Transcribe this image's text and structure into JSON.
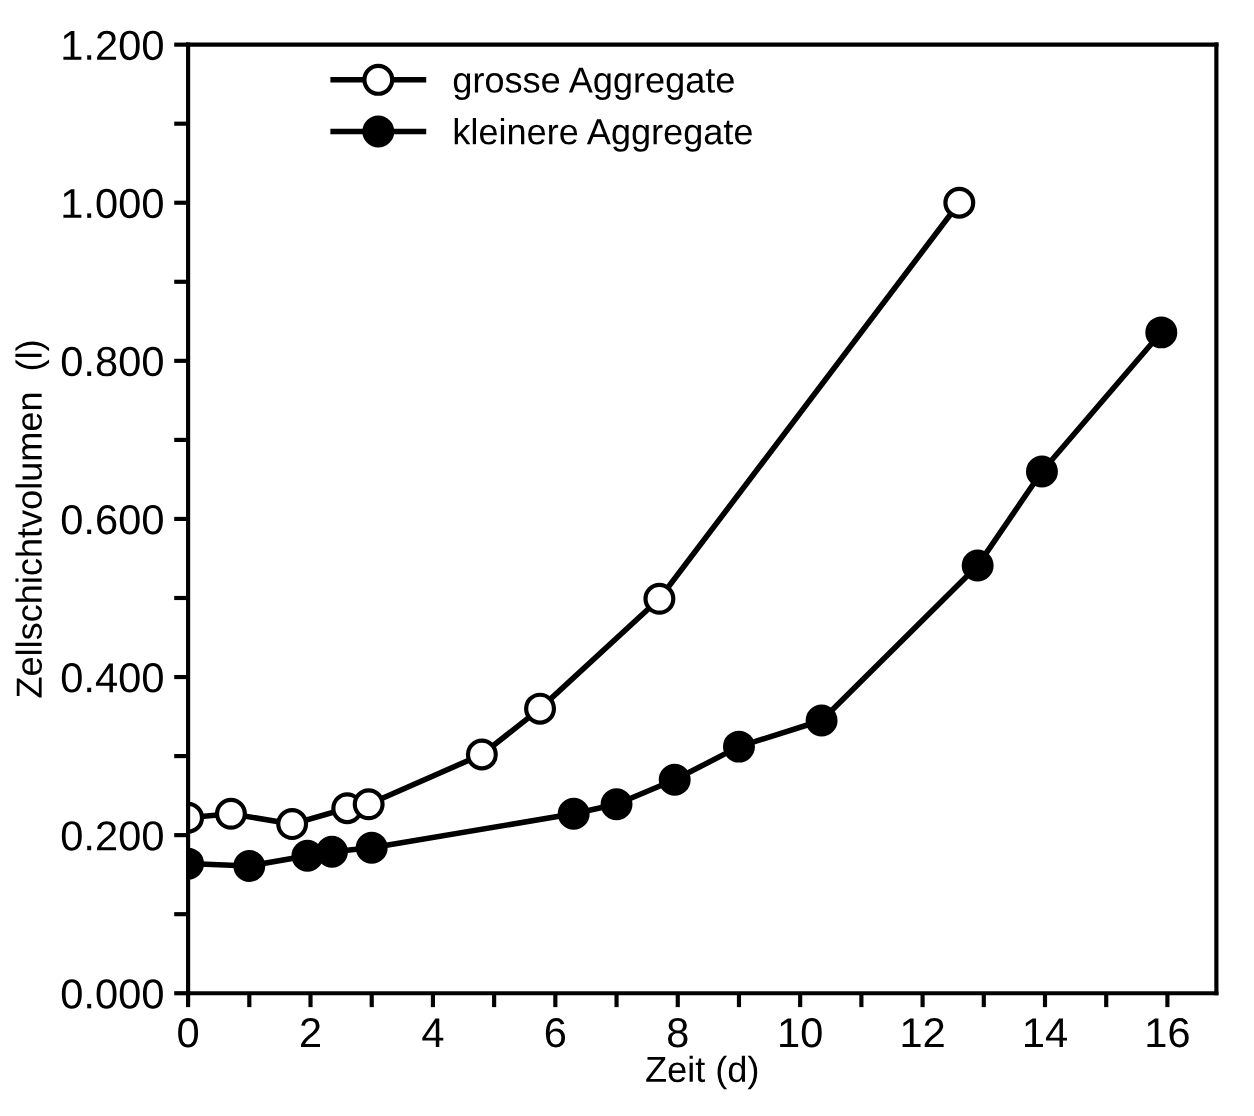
{
  "chart_data": {
    "type": "line",
    "xlabel": "Zeit (d)",
    "ylabel": "Zellschichtvolumen  (l)",
    "xlim": [
      0,
      16.8
    ],
    "ylim": [
      0,
      1.2
    ],
    "xticks": [
      0,
      {
        "value": 1,
        "label": null
      },
      2,
      {
        "value": 3,
        "label": null
      },
      4,
      {
        "value": 5,
        "label": null
      },
      6,
      {
        "value": 7,
        "label": null
      },
      8,
      {
        "value": 9,
        "label": null
      },
      10,
      {
        "value": 11,
        "label": null
      },
      12,
      {
        "value": 13,
        "label": null
      },
      14,
      {
        "value": 15,
        "label": null
      },
      16
    ],
    "yticks": [
      {
        "value": 0,
        "label": "0.000"
      },
      {
        "value": 0.1,
        "label": null
      },
      {
        "value": 0.2,
        "label": "0.200"
      },
      {
        "value": 0.3,
        "label": null
      },
      {
        "value": 0.4,
        "label": "0.400"
      },
      {
        "value": 0.5,
        "label": null
      },
      {
        "value": 0.6,
        "label": "0.600"
      },
      {
        "value": 0.7,
        "label": null
      },
      {
        "value": 0.8,
        "label": "0.800"
      },
      {
        "value": 0.9,
        "label": null
      },
      {
        "value": 1.0,
        "label": "1.000"
      },
      {
        "value": 1.1,
        "label": null
      },
      {
        "value": 1.2,
        "label": "1.200"
      }
    ],
    "grid": false,
    "legend": "top left",
    "marker": "circle",
    "line_style": "solid",
    "series": [
      {
        "name": "grosse Aggregate",
        "color": "#ffffff",
        "x": [
          0,
          0.7,
          1.7,
          2.6,
          2.95,
          4.8,
          5.75,
          7.7,
          12.6
        ],
        "values": [
          0.222,
          0.227,
          0.214,
          0.234,
          0.239,
          0.302,
          0.36,
          0.499,
          1.0
        ]
      },
      {
        "name": "kleinere Aggregate",
        "color": "#000000",
        "x": [
          0,
          1.0,
          1.95,
          2.35,
          3.0,
          6.3,
          7.0,
          7.95,
          9.0,
          10.35,
          12.9,
          13.95,
          15.9
        ],
        "values": [
          0.164,
          0.161,
          0.174,
          0.179,
          0.184,
          0.227,
          0.239,
          0.27,
          0.312,
          0.345,
          0.541,
          0.66,
          0.836
        ]
      }
    ]
  }
}
